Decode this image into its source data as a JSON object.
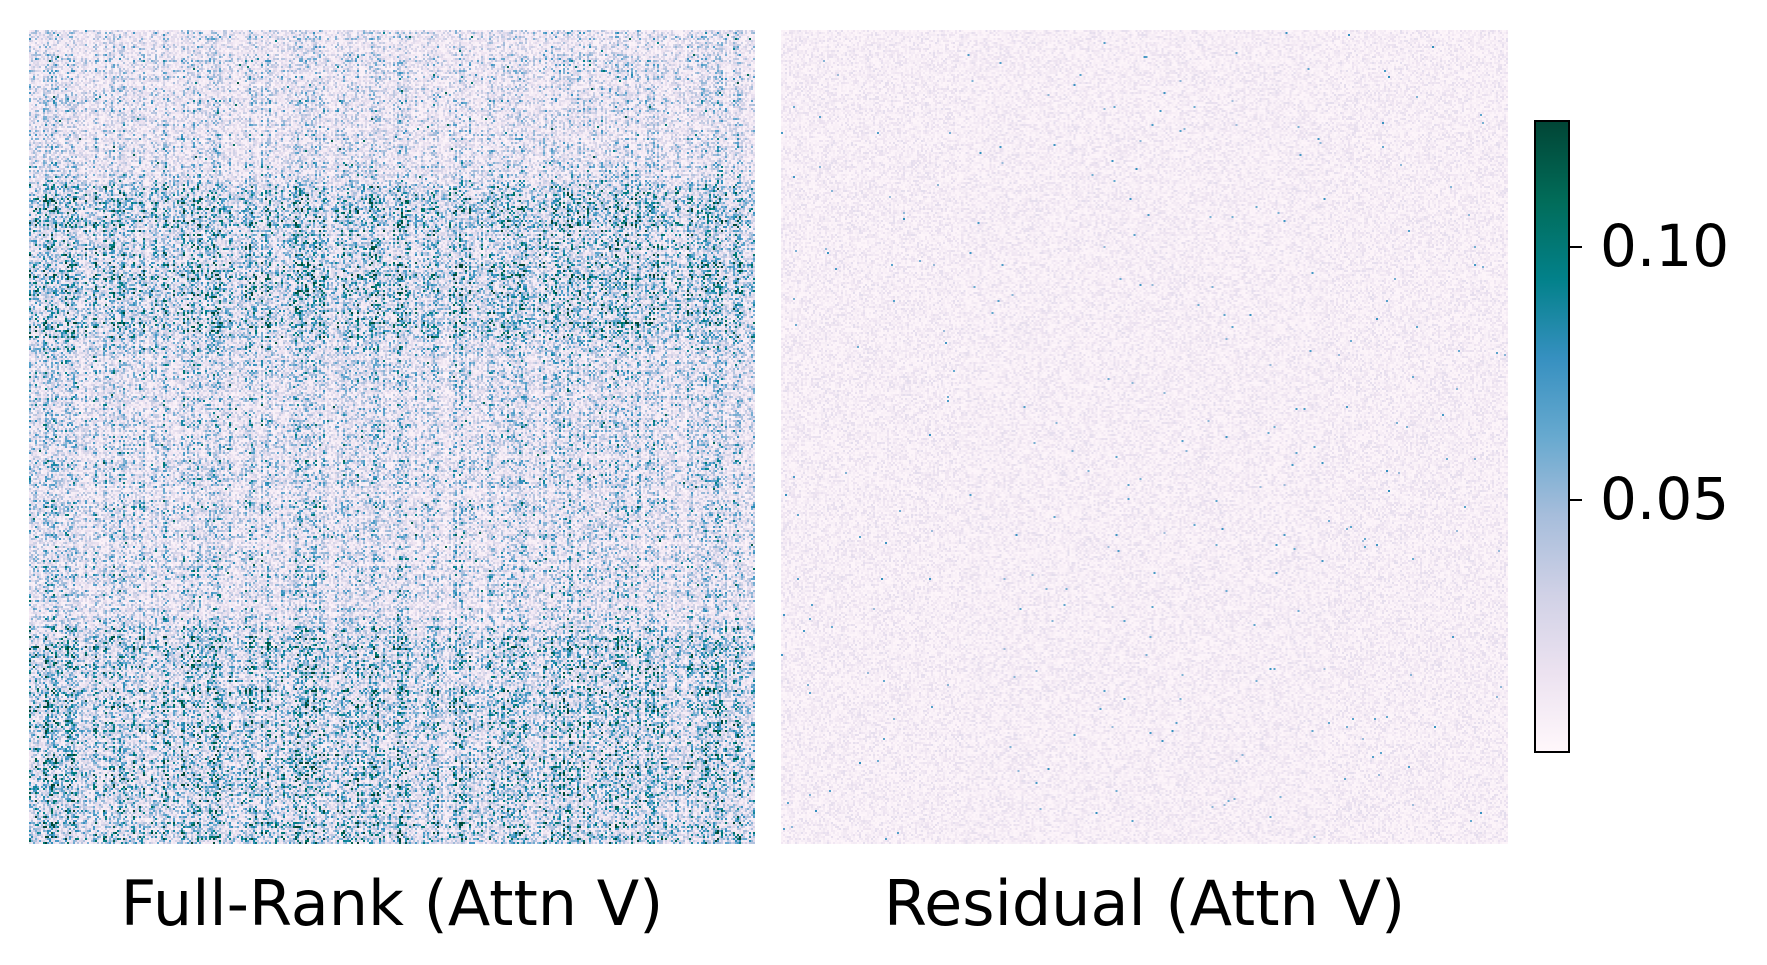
{
  "chart_data": [
    {
      "type": "heatmap",
      "title": "Full-Rank (Attn V)",
      "description_values": {
        "typical_value": 0.035,
        "max_value": 0.12,
        "high_intensity_row_bands": [
          [
            0.19,
            0.4
          ],
          [
            0.73,
            1.0
          ]
        ]
      },
      "colormap": "PuBuGn",
      "xlabel": "",
      "ylabel": ""
    },
    {
      "type": "heatmap",
      "title": "Residual (Attn V)",
      "description_values": {
        "typical_value": 0.01,
        "max_value": 0.08
      },
      "colormap": "PuBuGn",
      "xlabel": "",
      "ylabel": ""
    }
  ],
  "colorbar": {
    "range": [
      0.0,
      0.125
    ],
    "ticks": [
      {
        "value": 0.05,
        "label": "0.05"
      },
      {
        "value": 0.1,
        "label": "0.10"
      }
    ],
    "colors": [
      "#fff7fb",
      "#ece2f0",
      "#d0d1e6",
      "#a6bddb",
      "#67a9cf",
      "#3690c0",
      "#02818a",
      "#016c59",
      "#014636"
    ]
  }
}
